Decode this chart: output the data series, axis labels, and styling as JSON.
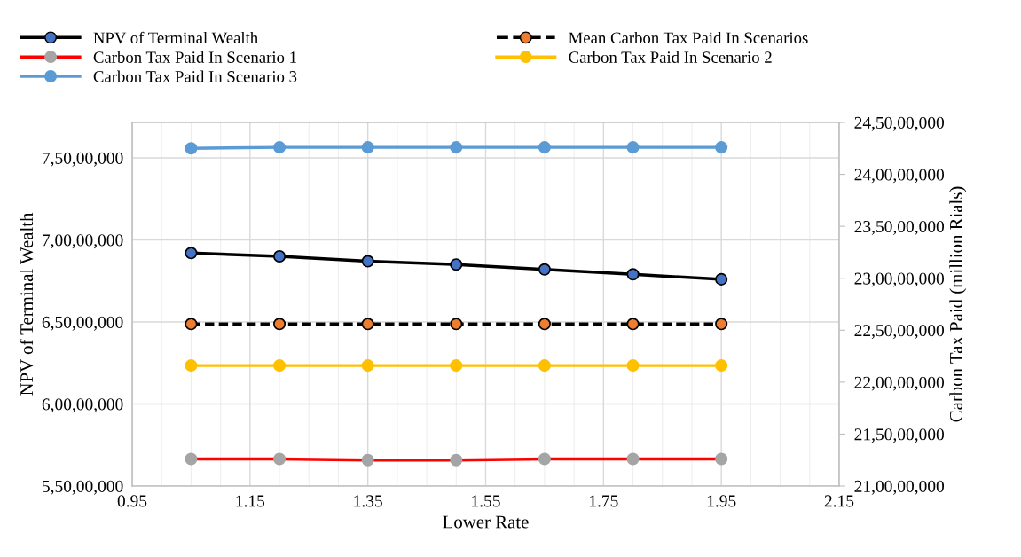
{
  "chart_data": {
    "type": "line",
    "xlabel": "Lower Rate",
    "ylabel": "NPV of Terminal Wealth",
    "y2label": "Carbon Tax Paid (million Rials)",
    "x": [
      1.05,
      1.2,
      1.35,
      1.5,
      1.65,
      1.8,
      1.95
    ],
    "xlim": [
      0.95,
      2.15
    ],
    "xticks": [
      {
        "value": 0.95,
        "label": "0.95"
      },
      {
        "value": 1.15,
        "label": "1.15"
      },
      {
        "value": 1.35,
        "label": "1.35"
      },
      {
        "value": 1.55,
        "label": "1.55"
      },
      {
        "value": 1.75,
        "label": "1.75"
      },
      {
        "value": 1.95,
        "label": "1.95"
      },
      {
        "value": 2.15,
        "label": "2.15"
      }
    ],
    "ylim": [
      55000000,
      77160000
    ],
    "yticks": [
      {
        "value": 55000000,
        "label": "5,50,00,000"
      },
      {
        "value": 60000000,
        "label": "6,00,00,000"
      },
      {
        "value": 65000000,
        "label": "6,50,00,000"
      },
      {
        "value": 70000000,
        "label": "7,00,00,000"
      },
      {
        "value": 75000000,
        "label": "7,50,00,000"
      }
    ],
    "y2lim": [
      210000000,
      245000000
    ],
    "y2ticks": [
      {
        "value": 210000000,
        "label": "21,00,00,000"
      },
      {
        "value": 215000000,
        "label": "21,50,00,000"
      },
      {
        "value": 220000000,
        "label": "22,00,00,000"
      },
      {
        "value": 225000000,
        "label": "22,50,00,000"
      },
      {
        "value": 230000000,
        "label": "23,00,00,000"
      },
      {
        "value": 235000000,
        "label": "23,50,00,000"
      },
      {
        "value": 240000000,
        "label": "24,00,00,000"
      },
      {
        "value": 245000000,
        "label": "24,50,00,000"
      }
    ],
    "grid": true,
    "legend": "top",
    "marker": "circle",
    "series": [
      {
        "name": "NPV of Terminal Wealth",
        "color": "#000000",
        "colors": [
          "#4472c4",
          "#4472c4",
          "#4472c4",
          "#4472c4",
          "#4472c4",
          "#4472c4",
          "#4472c4"
        ],
        "line_style": "solid",
        "values": [
          69200000,
          69000000,
          68700000,
          68500000,
          68200000,
          67900000,
          67600000
        ]
      },
      {
        "name": "Mean Carbon Tax Paid In Scenarios",
        "color": "#000000",
        "colors": [
          "#ed7d31",
          "#ed7d31",
          "#ed7d31",
          "#ed7d31",
          "#ed7d31",
          "#ed7d31",
          "#ed7d31"
        ],
        "line_style": "dashed",
        "axis": "y2",
        "values": [
          225600000,
          225600000,
          225600000,
          225600000,
          225600000,
          225600000,
          225600000
        ]
      },
      {
        "name": "Carbon Tax Paid In Scenario 1",
        "color": "#ff0000",
        "colors": [
          "#a5a5a5",
          "#a5a5a5",
          "#a5a5a5",
          "#a5a5a5",
          "#a5a5a5",
          "#a5a5a5",
          "#a5a5a5"
        ],
        "line_style": "solid",
        "axis": "y2",
        "values": [
          212600000,
          212600000,
          212500000,
          212500000,
          212600000,
          212600000,
          212600000
        ]
      },
      {
        "name": "Carbon Tax Paid In Scenario 2",
        "color": "#ffc000",
        "line_style": "solid",
        "axis": "y2",
        "values": [
          221600000,
          221600000,
          221600000,
          221600000,
          221600000,
          221600000,
          221600000
        ]
      },
      {
        "name": "Carbon Tax Paid In Scenario 3",
        "color": "#5b9bd5",
        "line_style": "solid",
        "axis": "y2",
        "values": [
          242500000,
          242600000,
          242600000,
          242600000,
          242600000,
          242600000,
          242600000
        ]
      }
    ]
  }
}
